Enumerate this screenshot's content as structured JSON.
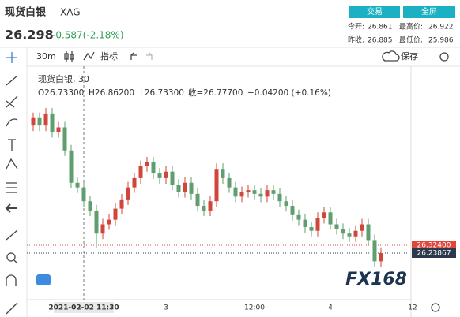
{
  "header": {
    "title": "现货白银",
    "symbol": "XAG",
    "price": "26.298",
    "change": "-0.587(-2.18%)",
    "buttons": [
      "交易",
      "全屏"
    ],
    "stats": [
      {
        "label": "今开:",
        "value": "26.861"
      },
      {
        "label": "最高价:",
        "value": "26.922"
      },
      {
        "label": "昨收:",
        "value": "26.885"
      },
      {
        "label": "最低价:",
        "value": "25.986"
      }
    ]
  },
  "toolbar": {
    "interval": "30m",
    "indicators": "指标",
    "save": "保存"
  },
  "watermark": "FX168",
  "chart_data": {
    "type": "candlestick",
    "legend": {
      "name": "现货白银, 30",
      "items": [
        "O26.73300",
        "H26.86200",
        "L26.73300",
        "收=26.77700",
        "+0.04200 (+0.16%)"
      ]
    },
    "up_color": "#d2453a",
    "down_color": "#5f9e6e",
    "categories": [
      null,
      null,
      null,
      null,
      null,
      null,
      null,
      null,
      "2021-02-02  11:30",
      null,
      null,
      null,
      null,
      null,
      null,
      null,
      null,
      null,
      null,
      null,
      null,
      "3",
      null,
      null,
      null,
      null,
      null,
      null,
      null,
      null,
      null,
      null,
      null,
      null,
      null,
      "12:00",
      null,
      null,
      null,
      null,
      null,
      null,
      null,
      null,
      null,
      null,
      null,
      "4",
      null,
      null,
      null,
      null,
      null,
      null,
      null,
      null,
      null,
      null,
      null,
      null,
      "12"
    ],
    "open": [
      27.62,
      27.7,
      27.62,
      27.75,
      27.55,
      27.6,
      27.35,
      27.0,
      26.95,
      26.8,
      26.7,
      26.45,
      26.55,
      26.6,
      26.72,
      26.82,
      26.95,
      27.05,
      27.18,
      27.22,
      27.1,
      27.05,
      27.12,
      26.98,
      26.9,
      27.0,
      26.88,
      26.75,
      26.7,
      26.8,
      27.15,
      27.05,
      26.95,
      26.85,
      26.9,
      26.92,
      26.88,
      26.85,
      26.92,
      26.88,
      26.8,
      26.75,
      26.65,
      26.6,
      26.52,
      26.48,
      26.62,
      26.68,
      26.55,
      26.5,
      26.45,
      26.42,
      26.48,
      26.55,
      26.38,
      26.15,
      null,
      null,
      null,
      null,
      null
    ],
    "high": [
      27.76,
      27.76,
      27.81,
      27.81,
      27.66,
      27.66,
      27.41,
      27.06,
      27.01,
      26.86,
      26.76,
      26.61,
      26.66,
      26.78,
      26.88,
      27.01,
      27.11,
      27.24,
      27.28,
      27.28,
      27.16,
      27.18,
      27.18,
      27.04,
      27.06,
      27.06,
      26.94,
      26.81,
      26.86,
      27.21,
      27.21,
      27.11,
      27.01,
      26.96,
      26.98,
      26.98,
      26.94,
      26.98,
      26.98,
      26.94,
      26.86,
      26.81,
      26.71,
      26.66,
      26.58,
      26.68,
      26.74,
      26.74,
      26.61,
      26.56,
      26.51,
      26.54,
      26.61,
      26.61,
      26.44,
      26.3,
      null,
      null,
      null,
      null,
      null
    ],
    "low": [
      27.56,
      27.56,
      27.56,
      27.49,
      27.49,
      27.29,
      26.94,
      26.89,
      26.74,
      26.64,
      26.3,
      26.39,
      26.49,
      26.54,
      26.66,
      26.76,
      26.89,
      26.99,
      27.12,
      27.04,
      26.99,
      26.99,
      26.92,
      26.84,
      26.84,
      26.82,
      26.69,
      26.64,
      26.64,
      26.74,
      26.99,
      26.89,
      26.79,
      26.79,
      26.84,
      26.82,
      26.79,
      26.79,
      26.82,
      26.74,
      26.69,
      26.59,
      26.54,
      26.46,
      26.42,
      26.42,
      26.56,
      26.49,
      26.44,
      26.39,
      26.36,
      26.36,
      26.42,
      26.32,
      26.09,
      26.09,
      null,
      null,
      null,
      null,
      null
    ],
    "close": [
      27.7,
      27.62,
      27.75,
      27.55,
      27.6,
      27.35,
      27.0,
      26.95,
      26.8,
      26.7,
      26.45,
      26.55,
      26.6,
      26.72,
      26.82,
      26.95,
      27.05,
      27.18,
      27.22,
      27.1,
      27.05,
      27.12,
      26.98,
      26.9,
      27.0,
      26.88,
      26.75,
      26.7,
      26.8,
      27.15,
      27.05,
      26.95,
      26.85,
      26.9,
      26.92,
      26.88,
      26.85,
      26.92,
      26.88,
      26.8,
      26.75,
      26.65,
      26.6,
      26.52,
      26.48,
      26.62,
      26.68,
      26.55,
      26.5,
      26.45,
      26.42,
      26.48,
      26.55,
      26.38,
      26.15,
      26.23867,
      null,
      null,
      null,
      null,
      null
    ],
    "ylim": [
      25.735,
      28.21
    ],
    "price_labels": [
      {
        "value": 26.324,
        "label": "26.32400",
        "color": "#e0463c"
      },
      {
        "value": 26.23867,
        "label": "26.23867",
        "color": "#2b3a4a"
      }
    ]
  }
}
